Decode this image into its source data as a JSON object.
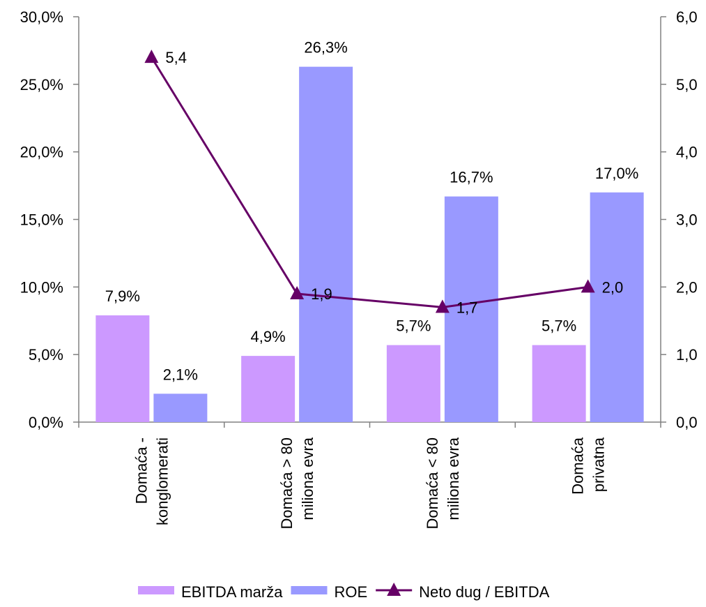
{
  "chart_data": {
    "type": "bar",
    "categories": [
      [
        "Domaća -",
        "konglomerati"
      ],
      [
        "Domaća  > 80",
        "miliona evra"
      ],
      [
        "Domaća < 80",
        "miliona evra"
      ],
      [
        "Domaća",
        "privatna"
      ]
    ],
    "series": [
      {
        "name": "EBITDA marža",
        "type": "bar",
        "axis": "left",
        "color": "#cc99ff",
        "values": [
          7.9,
          4.9,
          5.7,
          5.7
        ],
        "labels": [
          "7,9%",
          "4,9%",
          "5,7%",
          "5,7%"
        ]
      },
      {
        "name": "ROE",
        "type": "bar",
        "axis": "left",
        "color": "#9999ff",
        "values": [
          2.1,
          26.3,
          16.7,
          17.0
        ],
        "labels": [
          "2,1%",
          "26,3%",
          "16,7%",
          "17,0%"
        ]
      },
      {
        "name": "Neto dug / EBITDA",
        "type": "line",
        "marker": "triangle",
        "axis": "right",
        "color": "#660066",
        "values": [
          5.4,
          1.9,
          1.7,
          2.0
        ],
        "labels": [
          "5,4",
          "1,9",
          "1,7",
          "2,0"
        ]
      }
    ],
    "left_axis": {
      "ylim": [
        0,
        30
      ],
      "ticks": [
        0,
        5,
        10,
        15,
        20,
        25,
        30
      ],
      "tick_labels": [
        "0,0%",
        "5,0%",
        "10,0%",
        "15,0%",
        "20,0%",
        "25,0%",
        "30,0%"
      ]
    },
    "right_axis": {
      "ylim": [
        0,
        6
      ],
      "ticks": [
        0,
        1,
        2,
        3,
        4,
        5,
        6
      ],
      "tick_labels": [
        "0,0",
        "1,0",
        "2,0",
        "3,0",
        "4,0",
        "5,0",
        "6,0"
      ]
    },
    "grid": false,
    "legend_position": "bottom"
  }
}
